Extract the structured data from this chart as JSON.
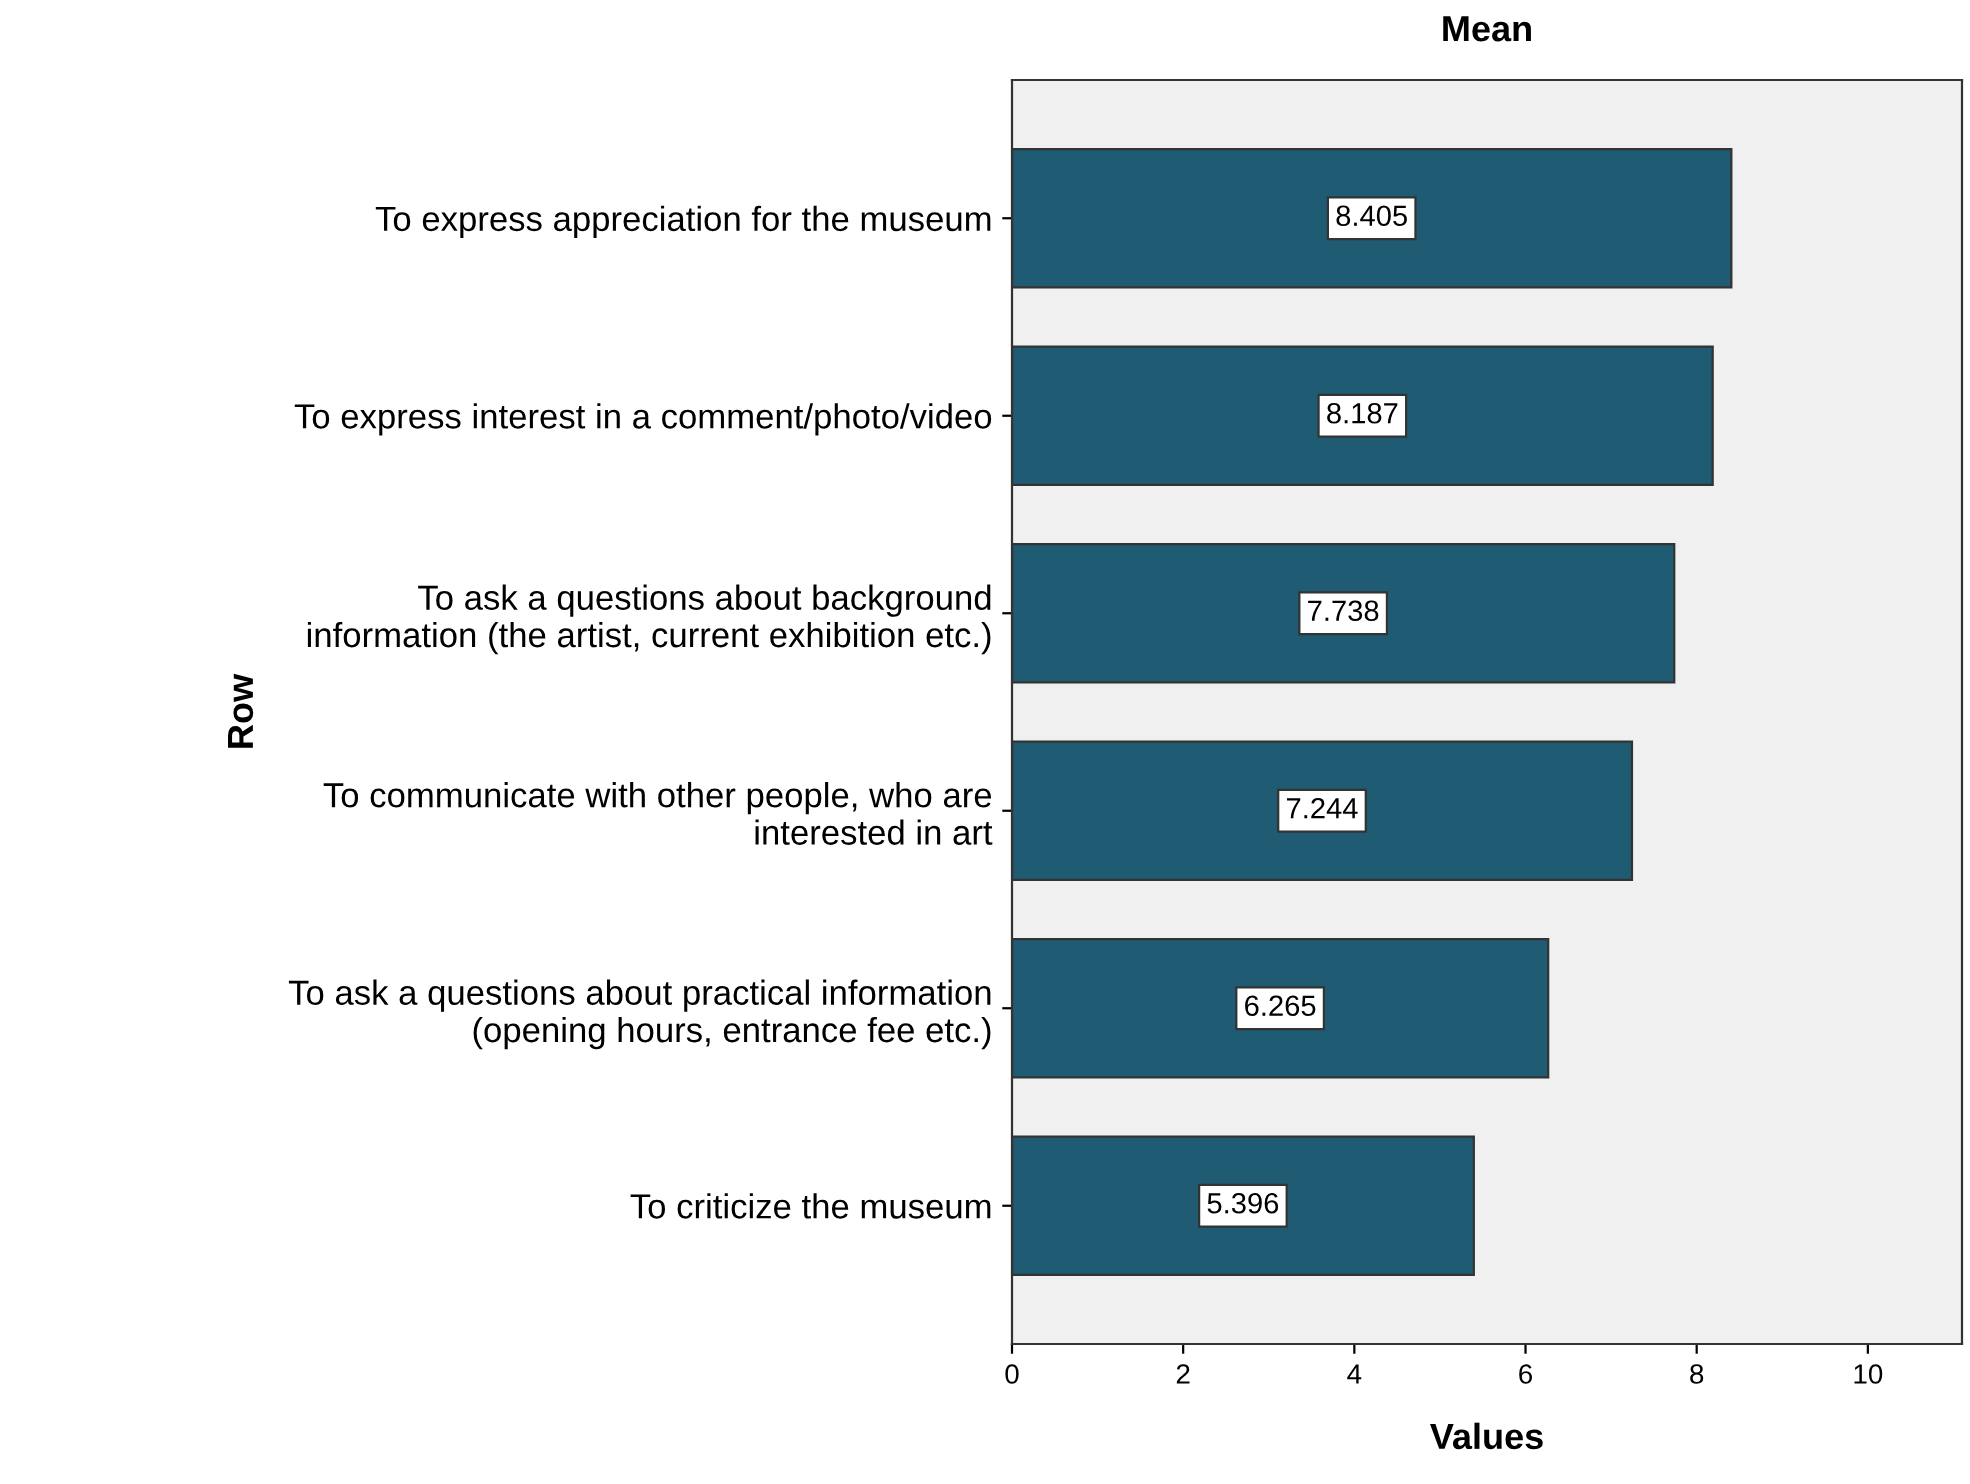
{
  "chart_data": {
    "type": "bar",
    "orientation": "horizontal",
    "title": "Mean",
    "xlabel": "Values",
    "ylabel": "Row",
    "categories": [
      "To express appreciation for the museum",
      "To express interest in a comment/photo/video",
      "To ask a questions about background\ninformation (the artist, current exhibition etc.)",
      "To communicate with other people, who are\ninterested in art",
      "To ask a questions about practical information\n(opening hours, entrance fee etc.)",
      "To criticize the museum"
    ],
    "values": [
      8.405,
      8.187,
      7.738,
      7.244,
      6.265,
      5.396
    ],
    "color": "#1f5c73",
    "xlim": [
      0,
      11.1
    ],
    "xticks": [
      0,
      2,
      4,
      6,
      8,
      10
    ],
    "data_labels": true,
    "grid": false,
    "legend": false
  }
}
